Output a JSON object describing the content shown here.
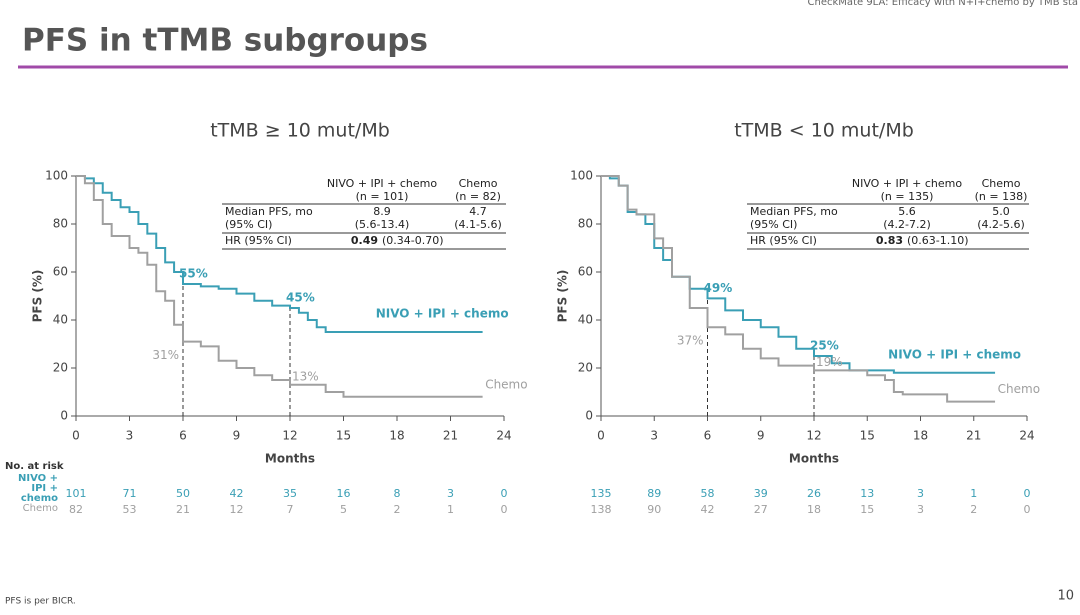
{
  "header": {
    "running_title": "CheckMate 9LA: Efficacy with N+I+chemo by TMB sta",
    "title": "PFS in tTMB subgroups"
  },
  "risk_table": {
    "title": "No. at risk",
    "labels": [
      "NIVO + IPI + chemo",
      "Chemo"
    ]
  },
  "footnote": "PFS is per BICR.",
  "page_number": 10,
  "chart_data": [
    {
      "type": "line",
      "step": true,
      "title": "tTMB ≥ 10 mut/Mb",
      "xlabel": "Months",
      "ylabel": "PFS (%)",
      "xlim": [
        0,
        24
      ],
      "ylim": [
        0,
        100
      ],
      "xticks": [
        0,
        3,
        6,
        9,
        12,
        15,
        18,
        21,
        24
      ],
      "yticks": [
        0,
        20,
        40,
        60,
        80,
        100
      ],
      "landmark_x": [
        6,
        12
      ],
      "series": [
        {
          "name": "NIVO + IPI + chemo",
          "color": "#3a9fb5",
          "x": [
            0,
            0.5,
            1,
            1.5,
            2,
            2.5,
            3,
            3.5,
            4,
            4.5,
            5,
            5.5,
            6,
            7,
            8,
            9,
            10,
            11,
            12,
            12.5,
            13,
            13.5,
            14,
            22.8
          ],
          "values": [
            100,
            99,
            97,
            93,
            90,
            87,
            85,
            80,
            76,
            70,
            64,
            60,
            55,
            54,
            53,
            51,
            48,
            46,
            45,
            43,
            40,
            37,
            35,
            35
          ],
          "landmark_values": [
            55,
            45
          ],
          "landmark_labels": [
            "55%",
            "45%"
          ],
          "at_risk": [
            101,
            71,
            50,
            42,
            35,
            16,
            8,
            3,
            0
          ]
        },
        {
          "name": "Chemo",
          "color": "#a0a0a0",
          "x": [
            0,
            0.5,
            1,
            1.5,
            2,
            3,
            3.5,
            4,
            4.5,
            5,
            5.5,
            6,
            7,
            8,
            9,
            10,
            11,
            12,
            14,
            15,
            22.8
          ],
          "values": [
            100,
            97,
            90,
            80,
            75,
            70,
            68,
            63,
            52,
            48,
            38,
            31,
            29,
            23,
            20,
            17,
            15,
            13,
            10,
            8,
            8
          ],
          "landmark_values": [
            31,
            13
          ],
          "landmark_labels": [
            "31%",
            "13%"
          ],
          "at_risk": [
            82,
            53,
            21,
            12,
            7,
            5,
            2,
            1,
            0
          ]
        }
      ],
      "summary_table": {
        "columns": [
          [
            "NIVO + IPI + chemo",
            "(n = 101)"
          ],
          [
            "Chemo",
            "(n = 82)"
          ]
        ],
        "row": {
          "label": "Median PFS, mo",
          "sub": "(95% CI)",
          "values": [
            "8.9",
            "4.7"
          ],
          "ci": [
            "(5.6-13.4)",
            "(4.1-5.6)"
          ]
        },
        "hr": {
          "label": "HR (95% CI)",
          "value": "0.49",
          "ci": "(0.34-0.70)"
        }
      }
    },
    {
      "type": "line",
      "step": true,
      "title": "tTMB < 10 mut/Mb",
      "xlabel": "Months",
      "ylabel": "PFS (%)",
      "xlim": [
        0,
        24
      ],
      "ylim": [
        0,
        100
      ],
      "xticks": [
        0,
        3,
        6,
        9,
        12,
        15,
        18,
        21,
        24
      ],
      "yticks": [
        0,
        20,
        40,
        60,
        80,
        100
      ],
      "landmark_x": [
        6,
        12
      ],
      "series": [
        {
          "name": "NIVO + IPI + chemo",
          "color": "#3a9fb5",
          "x": [
            0,
            0.5,
            1,
            1.5,
            2,
            2.5,
            3,
            3.5,
            4,
            5,
            6,
            7,
            8,
            9,
            10,
            11,
            12,
            13,
            14,
            16,
            16.5,
            22.2
          ],
          "values": [
            100,
            99,
            96,
            85,
            84,
            80,
            70,
            65,
            58,
            53,
            49,
            44,
            40,
            37,
            33,
            28,
            25,
            22,
            19,
            19,
            18,
            18
          ],
          "landmark_values": [
            49,
            25
          ],
          "landmark_labels": [
            "49%",
            "25%"
          ],
          "at_risk": [
            135,
            89,
            58,
            39,
            26,
            13,
            3,
            1,
            0
          ]
        },
        {
          "name": "Chemo",
          "color": "#a0a0a0",
          "x": [
            0,
            1,
            1.5,
            2,
            3,
            3.5,
            4,
            5,
            6,
            7,
            8,
            9,
            10,
            12,
            14,
            15,
            16,
            16.5,
            17,
            19,
            19.5,
            22.2
          ],
          "values": [
            100,
            96,
            86,
            84,
            74,
            70,
            58,
            45,
            37,
            34,
            28,
            24,
            21,
            19,
            19,
            17,
            15,
            10,
            9,
            9,
            6,
            6
          ],
          "landmark_values": [
            37,
            19
          ],
          "landmark_labels": [
            "37%",
            "19%"
          ],
          "at_risk": [
            138,
            90,
            42,
            27,
            18,
            15,
            3,
            2,
            0
          ]
        }
      ],
      "summary_table": {
        "columns": [
          [
            "NIVO + IPI + chemo",
            "(n = 135)"
          ],
          [
            "Chemo",
            "(n = 138)"
          ]
        ],
        "row": {
          "label": "Median PFS, mo",
          "sub": "(95% CI)",
          "values": [
            "5.6",
            "5.0"
          ],
          "ci": [
            "(4.2-7.2)",
            "(4.2-5.6)"
          ]
        },
        "hr": {
          "label": "HR (95% CI)",
          "value": "0.83",
          "ci": "(0.63-1.10)"
        }
      }
    }
  ]
}
